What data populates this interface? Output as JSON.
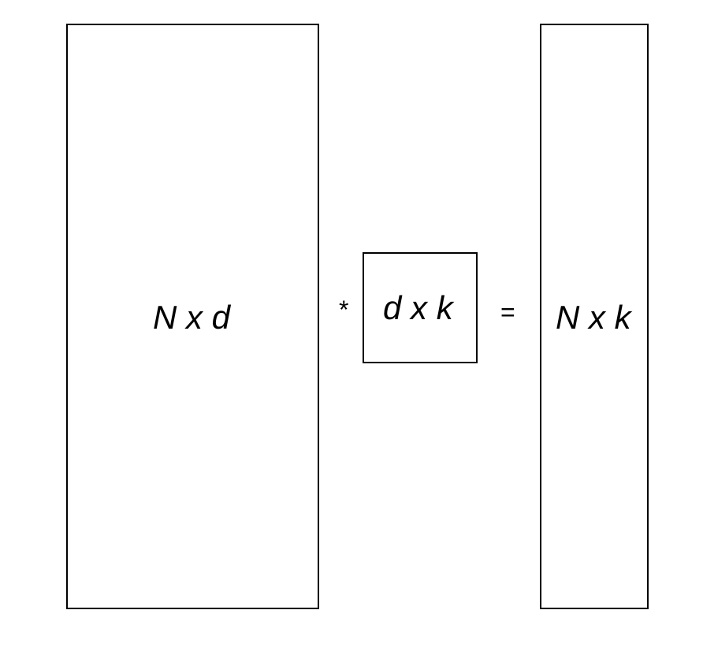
{
  "diagram": {
    "matrices": {
      "left": {
        "label": "N x d"
      },
      "middle": {
        "label": "d x k"
      },
      "right": {
        "label": "N x k"
      }
    },
    "operators": {
      "multiply": "*",
      "equals": "="
    }
  }
}
